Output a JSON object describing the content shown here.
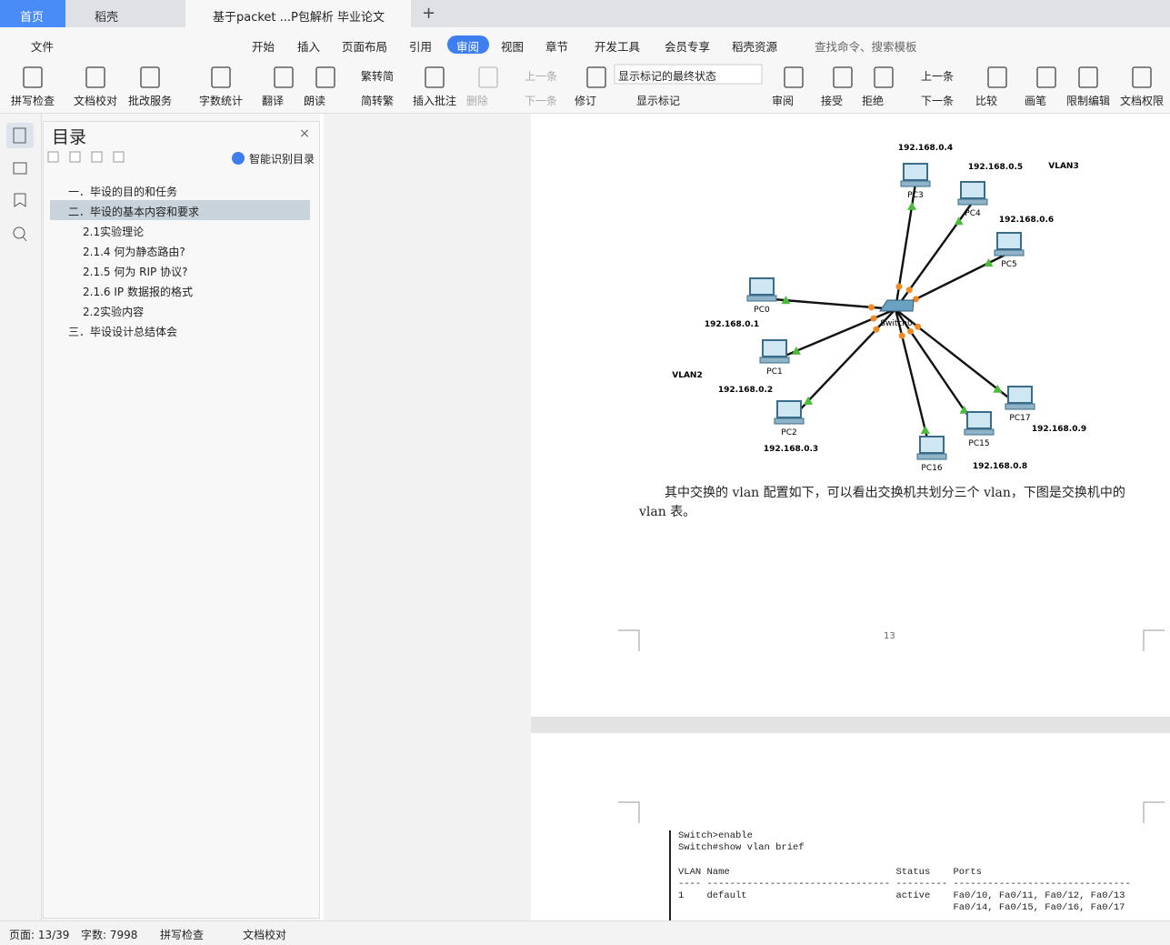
{
  "tabs": [
    "首页",
    "稻壳",
    "基于packet ...P包解析 毕业论文"
  ],
  "menu": [
    "文件",
    "开始",
    "插入",
    "页面布局",
    "引用",
    "审阅",
    "视图",
    "章节",
    "开发工具",
    "会员专享",
    "稻壳资源"
  ],
  "active_menu": 5,
  "search": "查找命令、搜索模板",
  "ribbon": [
    "拼写检查",
    "文档校对",
    "批改服务",
    "字数统计",
    "翻译",
    "朗读",
    "繁转简",
    "简转繁",
    "插入批注",
    "删除",
    "上一条",
    "下一条",
    "修订",
    "显示标记的最终状态",
    "显示标记",
    "审阅",
    "接受",
    "拒绝",
    "上一条",
    "下一条",
    "比较",
    "画笔",
    "限制编辑",
    "文档权限"
  ],
  "toc": {
    "title": "目录",
    "smart": "智能识别目录",
    "selected": 1,
    "items": [
      {
        "text": "一．毕设的目的和任务",
        "level": 1
      },
      {
        "text": "二．毕设的基本内容和要求",
        "level": 1
      },
      {
        "text": "2.1实验理论",
        "level": 2
      },
      {
        "text": "2.1.4 何为静态路由?",
        "level": 2
      },
      {
        "text": "2.1.5 何为 RIP 协议?",
        "level": 2
      },
      {
        "text": "2.1.6 IP 数据报的格式",
        "level": 2
      },
      {
        "text": "2.2实验内容",
        "level": 2
      },
      {
        "text": "三．毕设设计总结体会",
        "level": 1
      }
    ]
  },
  "network": {
    "switch": "Switch0",
    "pcs": [
      "PC3",
      "PC4",
      "PC5",
      "PC0",
      "PC1",
      "PC2",
      "PC16",
      "PC15",
      "PC17"
    ],
    "ips": [
      "192.168.0.4",
      "192.168.0.5",
      "192.168.0.6",
      "192.168.0.1",
      "192.168.0.2",
      "192.168.0.3",
      "192.168.0.8",
      "192.168.0.9"
    ],
    "vlans": [
      "VLAN3",
      "VLAN2"
    ]
  },
  "paragraph": "其中交换的 vlan 配置如下，可以看出交换机共划分三个 vlan，下图是交换机中的 vlan 表。",
  "page_number": "13",
  "code": [
    "Switch>enable",
    "Switch#show vlan brief",
    "VLAN Name                             Status    Ports",
    "---- -------------------------------- --------- -------------------------------",
    "1    default                          active    Fa0/10, Fa0/11, Fa0/12, Fa0/13",
    "                                                Fa0/14, Fa0/15, Fa0/16, Fa0/17"
  ],
  "status": [
    "页面: 13/39",
    "字数: 7998",
    "拼写检查",
    "文档校对"
  ]
}
